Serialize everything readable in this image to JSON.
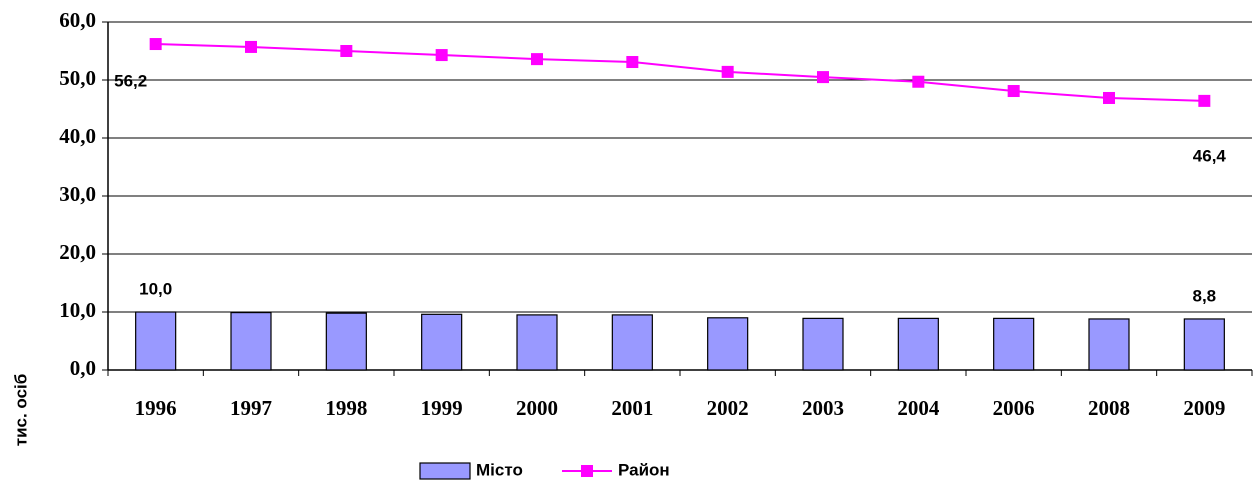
{
  "chart_data": {
    "type": "bar_line",
    "categories": [
      "1996",
      "1997",
      "1998",
      "1999",
      "2000",
      "2001",
      "2002",
      "2003",
      "2004",
      "2006",
      "2008",
      "2009"
    ],
    "series": [
      {
        "name": "Місто",
        "type": "bar",
        "color": "#9999ff",
        "values": [
          10.0,
          9.9,
          9.8,
          9.6,
          9.5,
          9.5,
          9.0,
          8.9,
          8.9,
          8.9,
          8.8,
          8.8
        ],
        "value_labels": [
          "10,0",
          null,
          null,
          null,
          null,
          null,
          null,
          null,
          null,
          null,
          null,
          "8,8"
        ]
      },
      {
        "name": "Район",
        "type": "line",
        "color": "#ff00ff",
        "values": [
          56.2,
          55.7,
          55.0,
          54.3,
          53.6,
          53.1,
          51.4,
          50.5,
          49.7,
          48.1,
          46.9,
          46.4
        ],
        "value_labels": [
          "56,2",
          null,
          null,
          null,
          null,
          null,
          null,
          null,
          null,
          null,
          null,
          "46,4"
        ]
      }
    ],
    "y_label": "тис. осіб",
    "ylim": [
      0,
      60
    ],
    "yticks": [
      {
        "value": 0,
        "label": "0,0"
      },
      {
        "value": 10,
        "label": "10,0"
      },
      {
        "value": 20,
        "label": "20,0"
      },
      {
        "value": 30,
        "label": "30,0"
      },
      {
        "value": 40,
        "label": "40,0"
      },
      {
        "value": 50,
        "label": "50,0"
      },
      {
        "value": 60,
        "label": "60,0"
      }
    ],
    "grid": true,
    "legend": "bottom"
  }
}
